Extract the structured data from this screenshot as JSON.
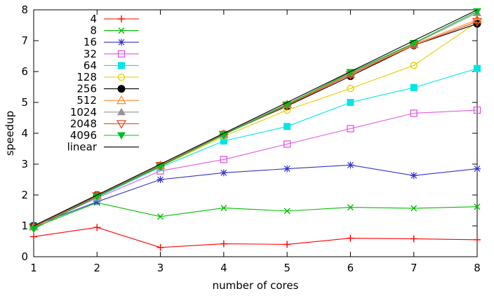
{
  "chart_data": {
    "type": "line",
    "title": "",
    "xlabel": "number of cores",
    "ylabel": "speedup",
    "xlim": [
      1,
      8
    ],
    "ylim": [
      0,
      8
    ],
    "xticks": [
      1,
      2,
      3,
      4,
      5,
      6,
      7,
      8
    ],
    "yticks": [
      0,
      1,
      2,
      3,
      4,
      5,
      6,
      7,
      8
    ],
    "grid": false,
    "legend_position": "top-left",
    "x": [
      1,
      2,
      3,
      4,
      5,
      6,
      7,
      8
    ],
    "series": [
      {
        "name": "4",
        "color": "#ff0000",
        "marker": "plus",
        "values": [
          0.65,
          0.95,
          0.3,
          0.42,
          0.4,
          0.6,
          0.58,
          0.55
        ]
      },
      {
        "name": "8",
        "color": "#00c000",
        "marker": "cross",
        "values": [
          0.95,
          1.75,
          1.3,
          1.58,
          1.48,
          1.6,
          1.57,
          1.62
        ]
      },
      {
        "name": "16",
        "color": "#3333cc",
        "marker": "asterisk",
        "values": [
          1.0,
          1.78,
          2.5,
          2.72,
          2.85,
          2.97,
          2.63,
          2.85
        ]
      },
      {
        "name": "32",
        "color": "#e058e0",
        "marker": "square-open",
        "values": [
          0.97,
          1.9,
          2.78,
          3.15,
          3.65,
          4.15,
          4.65,
          4.75
        ]
      },
      {
        "name": "64",
        "color": "#00e5e5",
        "marker": "square-filled",
        "values": [
          1.0,
          1.93,
          2.9,
          3.75,
          4.22,
          5.0,
          5.48,
          6.1
        ]
      },
      {
        "name": "128",
        "color": "#e3cf00",
        "marker": "circle-open",
        "values": [
          1.0,
          1.97,
          2.92,
          3.9,
          4.75,
          5.45,
          6.2,
          7.6
        ]
      },
      {
        "name": "256",
        "color": "#000000",
        "marker": "circle-filled",
        "values": [
          1.0,
          2.0,
          2.95,
          3.97,
          4.88,
          5.85,
          6.85,
          7.55
        ]
      },
      {
        "name": "512",
        "color": "#ff8c30",
        "marker": "triangle-up-open",
        "values": [
          0.97,
          1.98,
          2.96,
          3.97,
          4.93,
          5.92,
          6.88,
          7.68
        ]
      },
      {
        "name": "1024",
        "color": "#949494",
        "marker": "triangle-up-filled",
        "values": [
          0.98,
          1.99,
          2.97,
          3.98,
          4.95,
          5.95,
          6.9,
          7.9
        ]
      },
      {
        "name": "2048",
        "color": "#e84a1c",
        "marker": "triangle-down-open",
        "values": [
          0.96,
          1.97,
          2.95,
          3.96,
          4.9,
          5.9,
          6.85,
          7.62
        ]
      },
      {
        "name": "4096",
        "color": "#00c020",
        "marker": "triangle-down-filled",
        "values": [
          0.9,
          1.95,
          2.93,
          3.95,
          4.93,
          5.98,
          6.92,
          7.95
        ]
      },
      {
        "name": "linear",
        "color": "#000000",
        "marker": "none",
        "values": [
          1,
          2,
          3,
          4,
          5,
          6,
          7,
          8
        ]
      }
    ]
  }
}
